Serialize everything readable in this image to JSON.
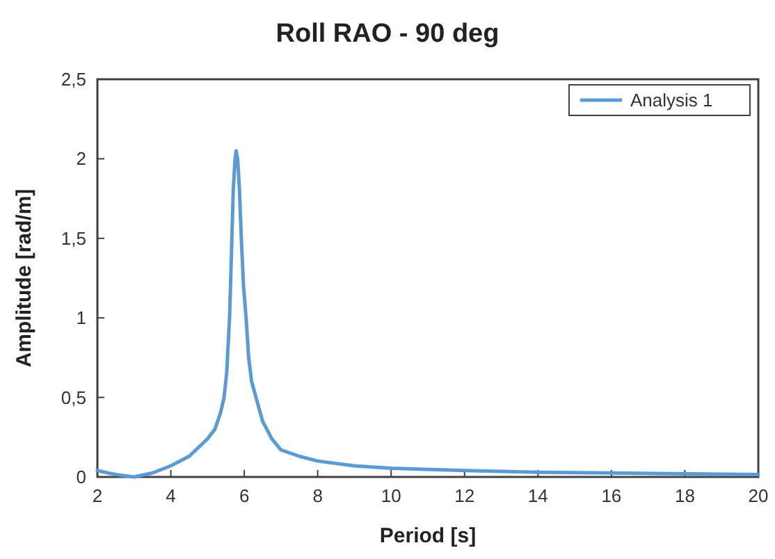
{
  "chart_data": {
    "type": "line",
    "title": "Roll RAO - 90 deg",
    "xlabel": "Period [s]",
    "ylabel": "Amplitude [rad/m]",
    "xlim": [
      2,
      20
    ],
    "xticks": [
      2,
      4,
      6,
      8,
      10,
      12,
      14,
      16,
      18,
      20
    ],
    "ylim": [
      0,
      2.5
    ],
    "yticks": [
      0,
      {
        "value": 0.5,
        "label": "0,5"
      },
      1,
      {
        "value": 1.5,
        "label": "1,5"
      },
      2,
      {
        "value": 2.5,
        "label": "2,5"
      }
    ],
    "grid": false,
    "legend": "top right",
    "marker": "none",
    "line_style": "solid",
    "series": [
      {
        "name": "Analysis 1",
        "color": "#5b9bd5",
        "x": [
          2,
          2.5,
          3,
          3.5,
          4,
          4.5,
          5,
          5.2,
          5.35,
          5.45,
          5.52,
          5.6,
          5.65,
          5.7,
          5.75,
          5.78,
          5.82,
          5.87,
          5.92,
          5.98,
          6.05,
          6.12,
          6.2,
          6.32,
          6.5,
          6.75,
          7,
          7.5,
          8,
          9,
          10,
          12,
          14,
          16,
          18,
          20
        ],
        "values": [
          0.04,
          0.015,
          0.0,
          0.025,
          0.07,
          0.13,
          0.24,
          0.3,
          0.4,
          0.5,
          0.65,
          1.0,
          1.4,
          1.8,
          2.0,
          2.05,
          2.0,
          1.8,
          1.5,
          1.2,
          1.0,
          0.75,
          0.6,
          0.5,
          0.35,
          0.24,
          0.17,
          0.13,
          0.1,
          0.07,
          0.055,
          0.04,
          0.03,
          0.025,
          0.02,
          0.015
        ]
      }
    ]
  }
}
